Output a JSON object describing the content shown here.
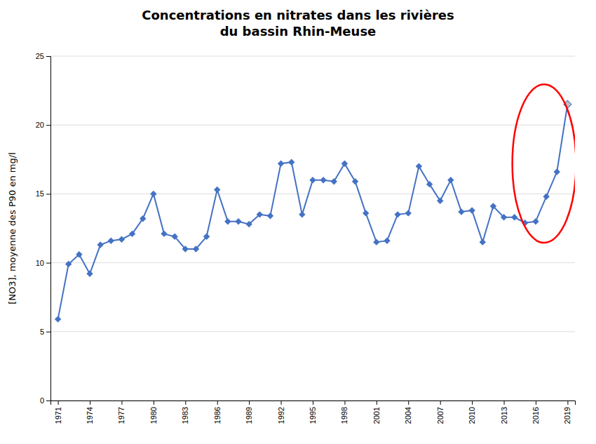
{
  "chart_data": {
    "type": "line",
    "title": "Concentrations en nitrates dans les rivières\ndu bassin Rhin-Meuse",
    "ylabel": "[NO3], moyenne des P90 en mg/l",
    "x": [
      1971,
      1972,
      1973,
      1974,
      1975,
      1976,
      1977,
      1978,
      1979,
      1980,
      1981,
      1982,
      1983,
      1984,
      1985,
      1986,
      1987,
      1988,
      1989,
      1990,
      1991,
      1992,
      1993,
      1994,
      1995,
      1996,
      1997,
      1998,
      1999,
      2000,
      2001,
      2002,
      2003,
      2004,
      2005,
      2006,
      2007,
      2008,
      2009,
      2010,
      2011,
      2012,
      2013,
      2014,
      2015,
      2016,
      2017,
      2018,
      2019
    ],
    "values": [
      5.9,
      9.9,
      10.6,
      9.2,
      11.3,
      11.6,
      11.7,
      12.1,
      13.2,
      15.0,
      12.1,
      11.9,
      11.0,
      11.0,
      11.9,
      15.3,
      13.0,
      13.0,
      12.8,
      13.5,
      13.4,
      17.2,
      17.3,
      13.5,
      16.0,
      16.0,
      15.9,
      17.2,
      15.9,
      13.6,
      11.5,
      11.6,
      13.5,
      13.6,
      17.0,
      15.7,
      14.5,
      16.0,
      13.7,
      13.8,
      11.5,
      14.1,
      13.3,
      13.3,
      12.9,
      13.0,
      14.8,
      16.6,
      21.5
    ],
    "color": "#4472C4",
    "colors": [
      "#4472C4",
      "#4472C4",
      "#4472C4",
      "#4472C4",
      "#4472C4",
      "#4472C4",
      "#4472C4",
      "#4472C4",
      "#4472C4",
      "#4472C4",
      "#4472C4",
      "#4472C4",
      "#4472C4",
      "#4472C4",
      "#4472C4",
      "#4472C4",
      "#4472C4",
      "#4472C4",
      "#4472C4",
      "#4472C4",
      "#4472C4",
      "#4472C4",
      "#4472C4",
      "#4472C4",
      "#4472C4",
      "#4472C4",
      "#4472C4",
      "#4472C4",
      "#4472C4",
      "#4472C4",
      "#4472C4",
      "#4472C4",
      "#4472C4",
      "#4472C4",
      "#4472C4",
      "#4472C4",
      "#4472C4",
      "#4472C4",
      "#4472C4",
      "#4472C4",
      "#4472C4",
      "#4472C4",
      "#4472C4",
      "#4472C4",
      "#4472C4",
      "#4472C4",
      "#4472C4",
      "#4472C4",
      "#C0C0C0"
    ],
    "marker": "diamond",
    "ylim": [
      0,
      25
    ],
    "yticks": [
      0,
      5,
      10,
      15,
      20,
      25
    ],
    "xlim": [
      1970.3,
      2019.7
    ],
    "xticks": [
      1971,
      1974,
      1977,
      1980,
      1983,
      1986,
      1989,
      1992,
      1995,
      1998,
      2001,
      2004,
      2007,
      2010,
      2013,
      2016,
      2019
    ],
    "grid": true,
    "highlight": {
      "x": 2016.8,
      "y": 17.2,
      "width": 6.0,
      "height": 11.5,
      "color": "red"
    }
  }
}
